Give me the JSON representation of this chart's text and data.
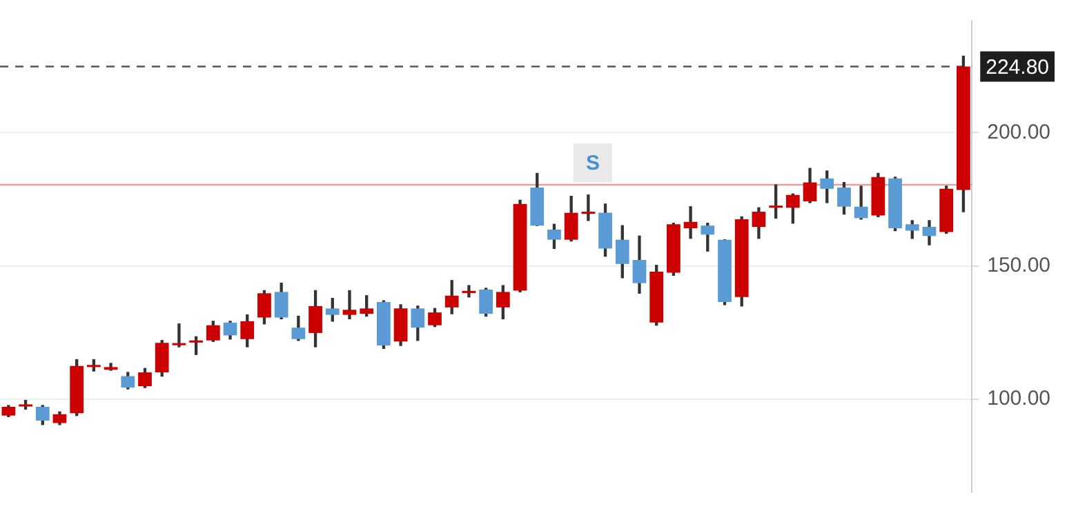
{
  "chart_data": {
    "type": "candlestick",
    "categories": [
      null,
      null,
      null,
      null,
      null,
      null,
      null,
      null,
      null,
      null,
      null,
      null,
      null,
      null,
      null,
      null,
      null,
      null,
      null,
      null,
      null,
      null,
      null,
      null,
      null,
      null,
      null,
      null,
      null,
      null,
      null,
      null,
      null,
      null,
      null,
      null,
      null,
      null,
      null,
      null,
      null,
      null,
      null,
      null,
      null,
      null,
      null,
      null,
      null,
      null,
      null,
      null,
      null,
      null,
      null,
      null,
      null
    ],
    "ohlc": [
      [
        93.8,
        97.6,
        93.4,
        97.1
      ],
      [
        97.2,
        99.5,
        96.2,
        98.0
      ],
      [
        97.1,
        97.6,
        90.4,
        91.9
      ],
      [
        91.0,
        95.2,
        90.4,
        94.3
      ],
      [
        94.7,
        114.8,
        93.8,
        112.4
      ],
      [
        112.0,
        114.8,
        110.5,
        112.8
      ],
      [
        111.0,
        113.4,
        110.8,
        112.0
      ],
      [
        108.6,
        110.0,
        103.8,
        104.3
      ],
      [
        104.8,
        111.5,
        104.3,
        110.0
      ],
      [
        110.0,
        122.0,
        108.6,
        121.1
      ],
      [
        120.2,
        128.2,
        119.6,
        121.0
      ],
      [
        121.2,
        123.4,
        116.7,
        122.0
      ],
      [
        122.0,
        129.2,
        121.6,
        127.7
      ],
      [
        128.7,
        129.2,
        122.5,
        123.9
      ],
      [
        122.5,
        131.6,
        119.6,
        129.2
      ],
      [
        130.6,
        140.7,
        128.2,
        139.7
      ],
      [
        140.2,
        143.5,
        130.1,
        130.6
      ],
      [
        126.8,
        131.1,
        122.0,
        122.5
      ],
      [
        124.8,
        140.7,
        119.6,
        134.9
      ],
      [
        134.0,
        137.8,
        129.2,
        131.6
      ],
      [
        131.6,
        140.7,
        130.1,
        133.5
      ],
      [
        132.0,
        138.8,
        131.1,
        134.0
      ],
      [
        136.4,
        136.9,
        119.0,
        120.1
      ],
      [
        121.6,
        135.4,
        120.1,
        134.0
      ],
      [
        134.0,
        134.9,
        122.0,
        126.8
      ],
      [
        127.7,
        134.0,
        127.2,
        132.5
      ],
      [
        134.4,
        144.5,
        132.0,
        138.8
      ],
      [
        139.8,
        142.6,
        138.3,
        140.6
      ],
      [
        141.1,
        141.6,
        131.1,
        132.0
      ],
      [
        134.4,
        142.6,
        130.1,
        140.2
      ],
      [
        140.7,
        174.6,
        140.2,
        173.2
      ],
      [
        179.4,
        184.7,
        165.1,
        165.1
      ],
      [
        163.6,
        165.6,
        156.5,
        159.8
      ],
      [
        159.8,
        176.1,
        159.3,
        169.9
      ],
      [
        169.5,
        176.6,
        167.0,
        170.3
      ],
      [
        169.9,
        173.2,
        153.6,
        156.5
      ],
      [
        159.8,
        165.1,
        145.5,
        150.7
      ],
      [
        152.2,
        161.2,
        139.7,
        143.5
      ],
      [
        128.7,
        150.2,
        127.7,
        147.8
      ],
      [
        147.4,
        166.0,
        146.4,
        165.6
      ],
      [
        164.1,
        172.2,
        160.3,
        166.5
      ],
      [
        165.1,
        166.0,
        155.5,
        161.7
      ],
      [
        159.8,
        159.8,
        135.4,
        136.4
      ],
      [
        138.3,
        168.4,
        134.9,
        167.5
      ],
      [
        164.6,
        171.8,
        160.3,
        170.3
      ],
      [
        171.8,
        180.4,
        167.9,
        172.6
      ],
      [
        171.8,
        177.0,
        166.0,
        176.6
      ],
      [
        174.2,
        186.6,
        173.7,
        181.3
      ],
      [
        182.8,
        185.6,
        173.7,
        178.9
      ],
      [
        179.4,
        181.3,
        169.4,
        172.2
      ],
      [
        172.2,
        179.9,
        167.5,
        167.9
      ],
      [
        168.9,
        184.7,
        168.4,
        183.3
      ],
      [
        182.8,
        183.3,
        163.2,
        164.1
      ],
      [
        165.6,
        167.0,
        160.3,
        163.2
      ],
      [
        164.6,
        167.0,
        157.9,
        161.2
      ],
      [
        162.7,
        179.9,
        162.2,
        178.9
      ],
      [
        178.5,
        228.7,
        170.3,
        224.8
      ]
    ],
    "colors": [
      "#cc0000",
      "#cc0000",
      "#5b9bd5",
      "#cc0000",
      "#cc0000",
      "#cc0000",
      "#cc0000",
      "#5b9bd5",
      "#cc0000",
      "#cc0000",
      "#cc0000",
      "#cc0000",
      "#cc0000",
      "#5b9bd5",
      "#cc0000",
      "#cc0000",
      "#5b9bd5",
      "#5b9bd5",
      "#cc0000",
      "#5b9bd5",
      "#cc0000",
      "#cc0000",
      "#5b9bd5",
      "#cc0000",
      "#5b9bd5",
      "#cc0000",
      "#cc0000",
      "#cc0000",
      "#5b9bd5",
      "#cc0000",
      "#cc0000",
      "#5b9bd5",
      "#5b9bd5",
      "#cc0000",
      "#cc0000",
      "#5b9bd5",
      "#5b9bd5",
      "#5b9bd5",
      "#cc0000",
      "#cc0000",
      "#cc0000",
      "#5b9bd5",
      "#5b9bd5",
      "#cc0000",
      "#cc0000",
      "#cc0000",
      "#cc0000",
      "#cc0000",
      "#5b9bd5",
      "#5b9bd5",
      "#5b9bd5",
      "#cc0000",
      "#5b9bd5",
      "#5b9bd5",
      "#5b9bd5",
      "#cc0000",
      "#cc0000"
    ],
    "ylim": [
      65,
      242
    ],
    "yticks": [
      {
        "value": 100,
        "label": "100.00"
      },
      {
        "value": 150,
        "label": "150.00"
      },
      {
        "value": 200,
        "label": "200.00"
      }
    ],
    "tick_labels": "y",
    "grid": "y",
    "ref_lines": [
      {
        "axis": "y",
        "value": 224.8,
        "label": "224.80",
        "color": "#555555",
        "line_style": "dashed"
      },
      {
        "axis": "y",
        "value": 180.4,
        "color": "#e8a09a"
      }
    ],
    "annotations": [
      "S"
    ]
  }
}
